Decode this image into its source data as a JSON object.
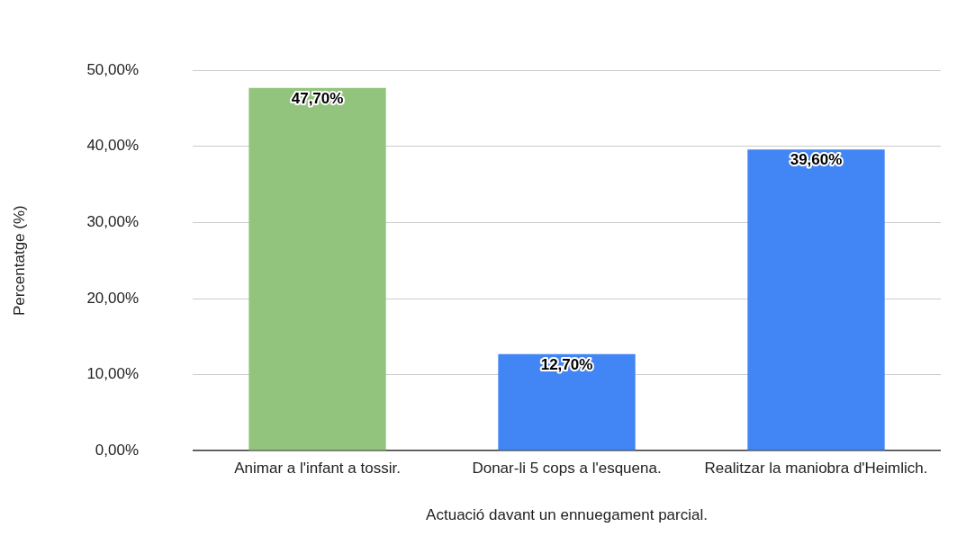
{
  "chart_data": {
    "type": "bar",
    "xlabel": "Actuació davant un ennuegament parcial.",
    "ylabel": "Percentatge (%)",
    "categories": [
      "Animar a l'infant a tossir.",
      "Donar-li 5 cops a l'esquena.",
      "Realitzar la maniobra d'Heimlich."
    ],
    "values": [
      47.7,
      12.7,
      39.6
    ],
    "colors": [
      "#93c47d",
      "#4285f4",
      "#4285f4"
    ],
    "value_labels": [
      "47,70%",
      "12,70%",
      "39,60%"
    ],
    "ylim": [
      0,
      50
    ],
    "yticks": [
      {
        "value": 0,
        "label": "0,00%"
      },
      {
        "value": 10,
        "label": "10,00%"
      },
      {
        "value": 20,
        "label": "20,00%"
      },
      {
        "value": 30,
        "label": "30,00%"
      },
      {
        "value": 40,
        "label": "40,00%"
      },
      {
        "value": 50,
        "label": "50,00%"
      }
    ],
    "grid": "y",
    "legend": false
  }
}
